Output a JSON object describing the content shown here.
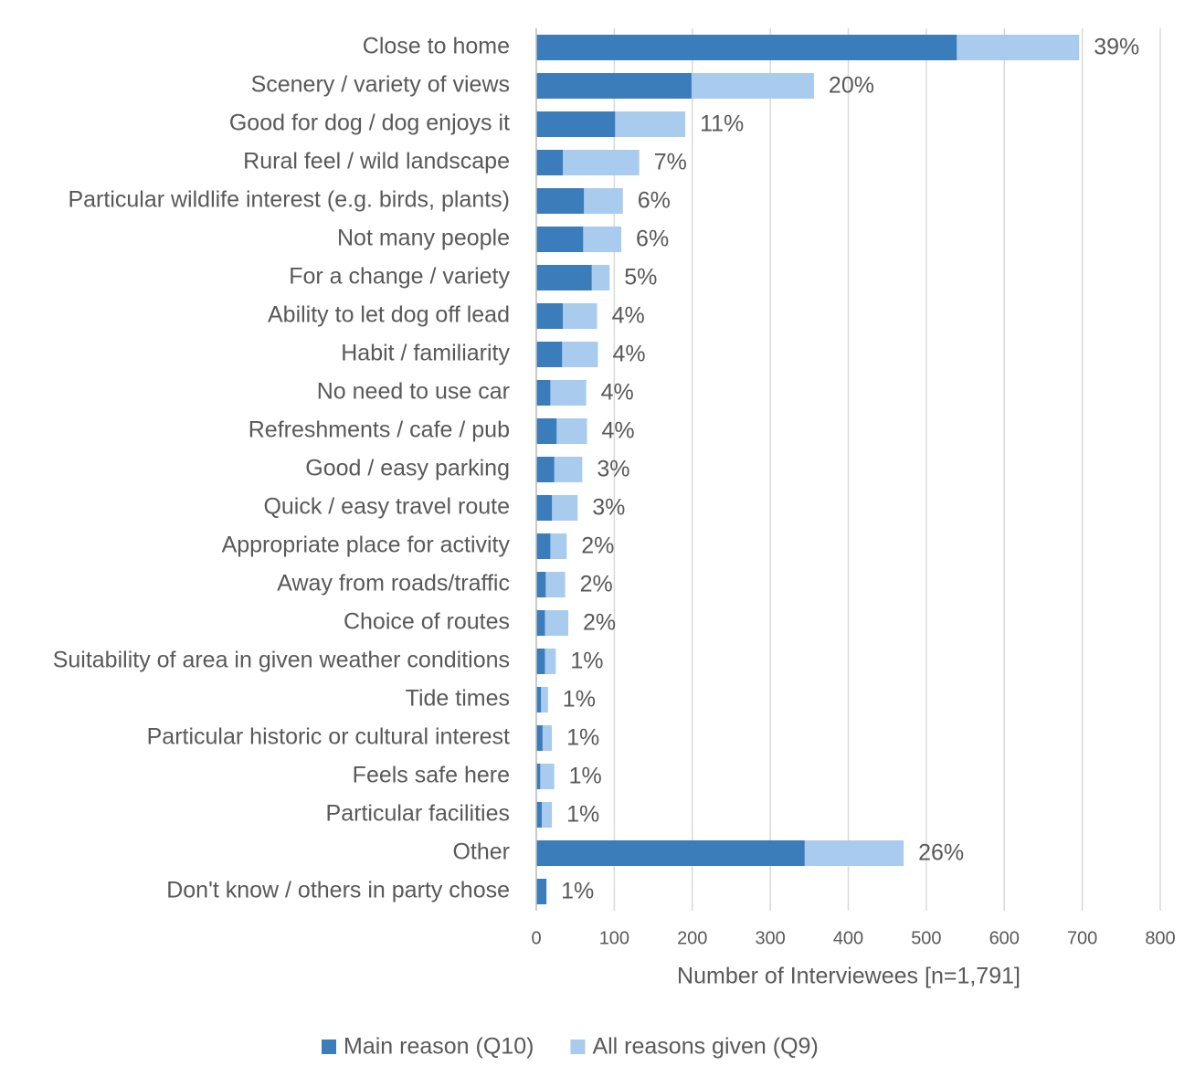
{
  "chart_data": {
    "type": "bar",
    "orientation": "horizontal",
    "overlap": true,
    "categories": [
      "Close to home",
      "Scenery / variety of views",
      "Good for dog / dog enjoys it",
      "Rural feel / wild landscape",
      "Particular wildlife interest (e.g. birds, plants)",
      "Not many people",
      "For a change / variety",
      "Ability to let dog off lead",
      "Habit / familiarity",
      "No need to use car",
      "Refreshments / cafe / pub",
      "Good / easy parking",
      "Quick / easy travel route",
      "Appropriate place for activity",
      "Away from roads/traffic",
      "Choice of routes",
      "Suitability of area in given weather conditions",
      "Tide times",
      "Particular historic or cultural interest",
      "Feels safe here",
      "Particular facilities",
      "Other",
      "Don't know / others in party chose"
    ],
    "series": [
      {
        "name": "Main reason (Q10)",
        "color": "#3a7dba",
        "values": [
          539,
          199,
          101,
          34,
          61,
          60,
          71,
          34,
          33,
          18,
          26,
          23,
          20,
          18,
          12,
          11,
          11,
          6,
          8,
          5,
          7,
          344,
          13
        ]
      },
      {
        "name": "All reasons given (Q9)",
        "color": "#a8cbee",
        "values": [
          696,
          356,
          191,
          132,
          111,
          109,
          94,
          78,
          79,
          64,
          65,
          59,
          53,
          39,
          37,
          41,
          25,
          15,
          20,
          23,
          20,
          471,
          13
        ],
        "value_labels": [
          "39%",
          "20%",
          "11%",
          "7%",
          "6%",
          "6%",
          "5%",
          "4%",
          "4%",
          "4%",
          "4%",
          "3%",
          "3%",
          "2%",
          "2%",
          "2%",
          "1%",
          "1%",
          "1%",
          "1%",
          "1%",
          "26%",
          "1%"
        ]
      }
    ],
    "xlim": [
      0,
      800
    ],
    "xticks": [
      0,
      100,
      200,
      300,
      400,
      500,
      600,
      700,
      800
    ],
    "xlabel": "Number of Interviewees [n=1,791]",
    "grid": true,
    "legend": "bottom"
  }
}
